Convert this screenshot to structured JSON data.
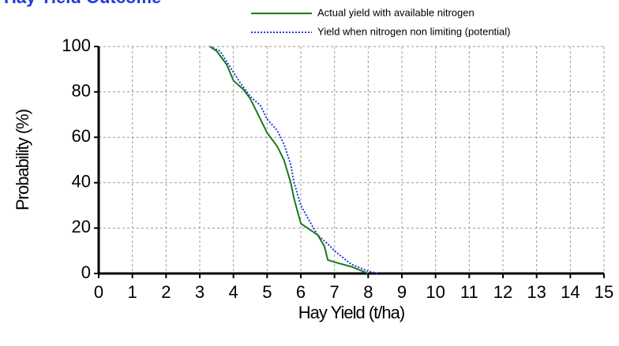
{
  "chart_data": {
    "type": "line",
    "title": "Hay Yield Outcome",
    "x_label": "Hay Yield (t/ha)",
    "y_label": "Probability (%)",
    "xlim": [
      0,
      15
    ],
    "xticks": [
      0,
      1,
      2,
      3,
      4,
      5,
      6,
      7,
      8,
      9,
      10,
      11,
      12,
      13,
      14,
      15
    ],
    "ylim": [
      0,
      100
    ],
    "yticks": [
      0,
      20,
      40,
      60,
      80,
      100
    ],
    "grid": true,
    "legend": "top-right",
    "series": [
      {
        "name": "Actual yield with available nitrogen",
        "color": "#1a7a1a",
        "style": "solid",
        "x": [
          3.3,
          3.5,
          3.8,
          4.0,
          4.3,
          4.5,
          4.8,
          5.0,
          5.3,
          5.5,
          5.7,
          5.8,
          6.0,
          6.3,
          6.5,
          6.7,
          6.8,
          7.0,
          7.5,
          8.0
        ],
        "values": [
          100,
          98,
          92,
          85,
          81,
          77,
          68,
          62,
          56,
          50,
          40,
          33,
          22,
          19,
          17,
          12,
          6,
          5,
          3,
          0
        ]
      },
      {
        "name": "Yield when nitrogen non limiting (potential)",
        "color": "#1f3bd6",
        "style": "dotted",
        "x": [
          3.3,
          3.6,
          3.9,
          4.2,
          4.5,
          4.8,
          5.0,
          5.3,
          5.5,
          5.7,
          5.8,
          6.0,
          6.3,
          6.5,
          6.8,
          7.0,
          7.5,
          8.0,
          8.3
        ],
        "values": [
          100,
          98,
          91,
          84,
          78,
          74,
          68,
          63,
          57,
          48,
          40,
          30,
          22,
          17,
          13,
          10,
          4,
          1,
          0
        ]
      }
    ]
  }
}
